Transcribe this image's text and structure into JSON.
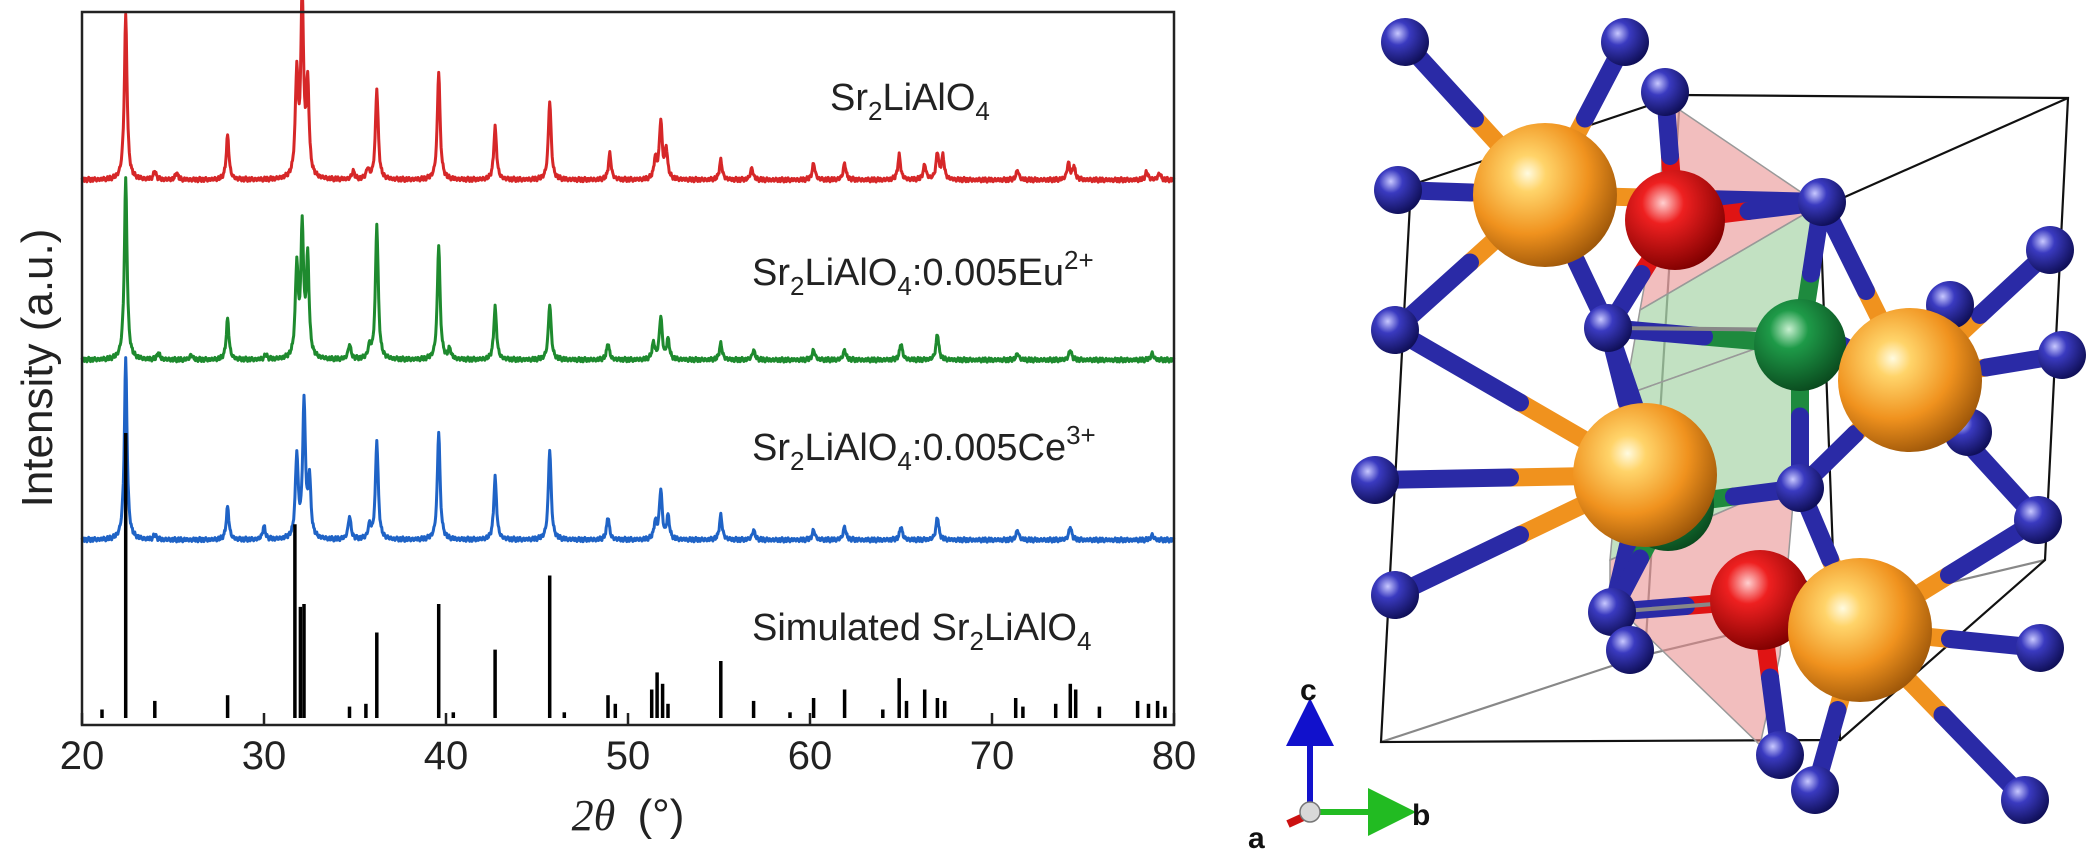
{
  "chart_data": {
    "type": "line",
    "xlabel": "(°)",
    "xlabel_symbol": "2θ",
    "ylabel": "Intensity (a.u.)",
    "xlim": [
      20,
      80
    ],
    "xticks": [
      20,
      30,
      40,
      50,
      60,
      70,
      80
    ],
    "grid": false,
    "series": [
      {
        "label_prefix": "Sr",
        "label_sub1": "2",
        "label_mid": "LiAlO",
        "label_sub2": "4",
        "label_suffix": "",
        "label_sup": "",
        "color": "#d62728",
        "offset": 3,
        "peaks": [
          [
            22.4,
            1.0
          ],
          [
            24.0,
            0.05
          ],
          [
            25.2,
            0.04
          ],
          [
            28.0,
            0.27
          ],
          [
            31.8,
            0.62
          ],
          [
            32.1,
            1.1
          ],
          [
            32.4,
            0.55
          ],
          [
            34.9,
            0.05
          ],
          [
            35.7,
            0.06
          ],
          [
            36.2,
            0.55
          ],
          [
            39.6,
            0.66
          ],
          [
            42.7,
            0.32
          ],
          [
            45.7,
            0.48
          ],
          [
            49.0,
            0.16
          ],
          [
            51.5,
            0.12
          ],
          [
            51.8,
            0.35
          ],
          [
            52.1,
            0.18
          ],
          [
            55.1,
            0.12
          ],
          [
            56.8,
            0.07
          ],
          [
            60.2,
            0.1
          ],
          [
            61.9,
            0.1
          ],
          [
            64.9,
            0.15
          ],
          [
            66.3,
            0.09
          ],
          [
            67.0,
            0.16
          ],
          [
            67.3,
            0.14
          ],
          [
            71.4,
            0.06
          ],
          [
            74.2,
            0.1
          ],
          [
            74.5,
            0.08
          ],
          [
            78.5,
            0.05
          ],
          [
            79.2,
            0.04
          ]
        ]
      },
      {
        "label_prefix": "Sr",
        "label_sub1": "2",
        "label_mid": "LiAlO",
        "label_sub2": "4",
        "label_suffix": ":0.005Eu",
        "label_sup": "2+",
        "color": "#1e8a2e",
        "offset": 2,
        "peaks": [
          [
            22.4,
            1.1
          ],
          [
            24.2,
            0.04
          ],
          [
            26.0,
            0.03
          ],
          [
            28.0,
            0.25
          ],
          [
            30.1,
            0.03
          ],
          [
            31.8,
            0.55
          ],
          [
            32.1,
            0.78
          ],
          [
            32.4,
            0.6
          ],
          [
            34.7,
            0.09
          ],
          [
            35.8,
            0.07
          ],
          [
            36.2,
            0.82
          ],
          [
            39.6,
            0.7
          ],
          [
            40.2,
            0.06
          ],
          [
            42.7,
            0.32
          ],
          [
            45.7,
            0.34
          ],
          [
            48.9,
            0.1
          ],
          [
            51.4,
            0.1
          ],
          [
            51.8,
            0.26
          ],
          [
            52.2,
            0.12
          ],
          [
            55.1,
            0.1
          ],
          [
            56.9,
            0.06
          ],
          [
            60.2,
            0.06
          ],
          [
            61.9,
            0.06
          ],
          [
            65.0,
            0.1
          ],
          [
            67.0,
            0.16
          ],
          [
            71.4,
            0.04
          ],
          [
            74.3,
            0.06
          ],
          [
            78.8,
            0.04
          ]
        ]
      },
      {
        "label_prefix": "Sr",
        "label_sub1": "2",
        "label_mid": "LiAlO",
        "label_sub2": "4",
        "label_suffix": ":0.005Ce",
        "label_sup": "3+",
        "color": "#1f63c6",
        "offset": 1,
        "peaks": [
          [
            22.4,
            1.1
          ],
          [
            24.0,
            0.03
          ],
          [
            28.0,
            0.2
          ],
          [
            30.0,
            0.08
          ],
          [
            31.8,
            0.5
          ],
          [
            32.2,
            0.82
          ],
          [
            32.5,
            0.35
          ],
          [
            34.7,
            0.14
          ],
          [
            35.8,
            0.08
          ],
          [
            36.2,
            0.6
          ],
          [
            39.6,
            0.66
          ],
          [
            42.7,
            0.38
          ],
          [
            45.7,
            0.55
          ],
          [
            48.9,
            0.14
          ],
          [
            51.5,
            0.1
          ],
          [
            51.8,
            0.3
          ],
          [
            52.2,
            0.14
          ],
          [
            55.1,
            0.15
          ],
          [
            56.9,
            0.06
          ],
          [
            60.2,
            0.06
          ],
          [
            61.9,
            0.08
          ],
          [
            65.0,
            0.08
          ],
          [
            67.0,
            0.14
          ],
          [
            71.4,
            0.06
          ],
          [
            74.3,
            0.08
          ],
          [
            78.8,
            0.03
          ]
        ]
      },
      {
        "label_prefix": "Simulated Sr",
        "label_sub1": "2",
        "label_mid": "LiAlO",
        "label_sub2": "4",
        "label_suffix": "",
        "label_sup": "",
        "color": "#000000",
        "offset": 0,
        "style": "stick",
        "peaks": [
          [
            21.1,
            0.03
          ],
          [
            22.4,
            1.0
          ],
          [
            24.0,
            0.06
          ],
          [
            28.0,
            0.08
          ],
          [
            31.7,
            0.68
          ],
          [
            32.0,
            0.39
          ],
          [
            32.2,
            0.4
          ],
          [
            34.7,
            0.04
          ],
          [
            35.6,
            0.05
          ],
          [
            36.2,
            0.3
          ],
          [
            39.6,
            0.4
          ],
          [
            40.4,
            0.02
          ],
          [
            42.7,
            0.24
          ],
          [
            45.7,
            0.5
          ],
          [
            46.5,
            0.02
          ],
          [
            48.9,
            0.08
          ],
          [
            49.3,
            0.05
          ],
          [
            51.3,
            0.1
          ],
          [
            51.6,
            0.16
          ],
          [
            51.9,
            0.12
          ],
          [
            52.2,
            0.05
          ],
          [
            55.1,
            0.2
          ],
          [
            56.9,
            0.06
          ],
          [
            58.9,
            0.02
          ],
          [
            60.2,
            0.07
          ],
          [
            61.9,
            0.1
          ],
          [
            64.0,
            0.03
          ],
          [
            64.9,
            0.14
          ],
          [
            65.3,
            0.06
          ],
          [
            66.3,
            0.1
          ],
          [
            67.0,
            0.07
          ],
          [
            67.4,
            0.06
          ],
          [
            71.3,
            0.07
          ],
          [
            71.7,
            0.04
          ],
          [
            73.5,
            0.05
          ],
          [
            74.3,
            0.12
          ],
          [
            74.6,
            0.1
          ],
          [
            75.9,
            0.04
          ],
          [
            78.0,
            0.06
          ],
          [
            78.6,
            0.05
          ],
          [
            79.1,
            0.06
          ],
          [
            79.5,
            0.04
          ]
        ]
      }
    ]
  },
  "crystal": {
    "axes": [
      {
        "letter": "a",
        "color": "#cc1111"
      },
      {
        "letter": "b",
        "color": "#22bb22"
      },
      {
        "letter": "c",
        "color": "#1111cc"
      }
    ],
    "colors": {
      "sr": "#f0921e",
      "o": "#2a2aa6",
      "li": "#e01414",
      "al": "#1e8a3e",
      "li_poly": "#e88888",
      "al_poly": "#90c890"
    }
  }
}
